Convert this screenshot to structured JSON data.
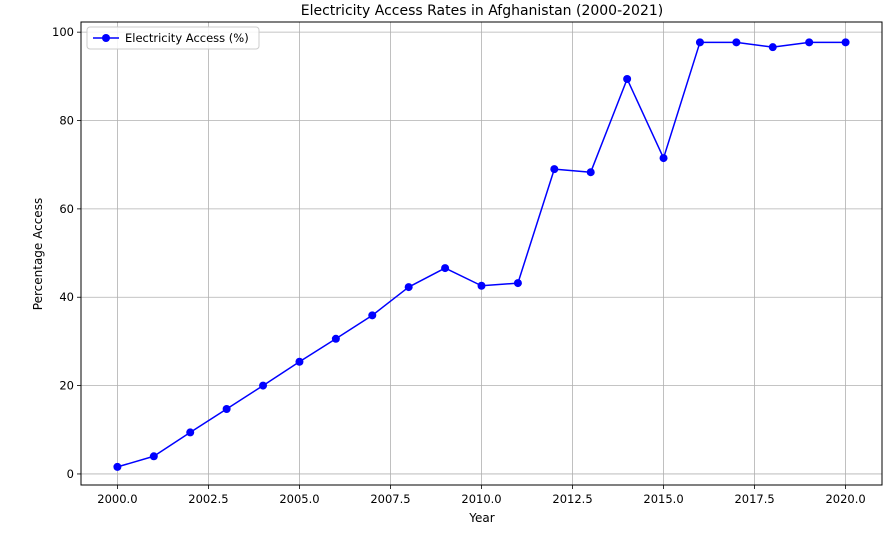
{
  "chart_data": {
    "type": "line",
    "title": "Electricity Access Rates in Afghanistan (2000-2021)",
    "xlabel": "Year",
    "ylabel": "Percentage Access",
    "xlim": [
      1999.0,
      2021.0
    ],
    "ylim": [
      -2.5,
      102.3
    ],
    "x_ticks": [
      2000.0,
      2002.5,
      2005.0,
      2007.5,
      2010.0,
      2012.5,
      2015.0,
      2017.5,
      2020.0
    ],
    "x_tick_labels": [
      "2000.0",
      "2002.5",
      "2005.0",
      "2007.5",
      "2010.0",
      "2012.5",
      "2015.0",
      "2017.5",
      "2020.0"
    ],
    "y_ticks": [
      0,
      20,
      40,
      60,
      80,
      100
    ],
    "y_tick_labels": [
      "0",
      "20",
      "40",
      "60",
      "80",
      "100"
    ],
    "grid": true,
    "legend_position": "top-left",
    "series": [
      {
        "name": "Electricity Access (%)",
        "color": "#0000ff",
        "marker": "circle",
        "x": [
          2000,
          2001,
          2002,
          2003,
          2004,
          2005,
          2006,
          2007,
          2008,
          2009,
          2010,
          2011,
          2012,
          2013,
          2014,
          2015,
          2016,
          2017,
          2018,
          2019,
          2020
        ],
        "y": [
          1.6,
          4.0,
          9.4,
          14.7,
          20.0,
          25.4,
          30.6,
          35.9,
          42.3,
          46.6,
          42.6,
          43.2,
          69.0,
          68.3,
          89.4,
          71.5,
          97.7,
          97.7,
          96.6,
          97.7,
          97.7
        ]
      }
    ]
  }
}
